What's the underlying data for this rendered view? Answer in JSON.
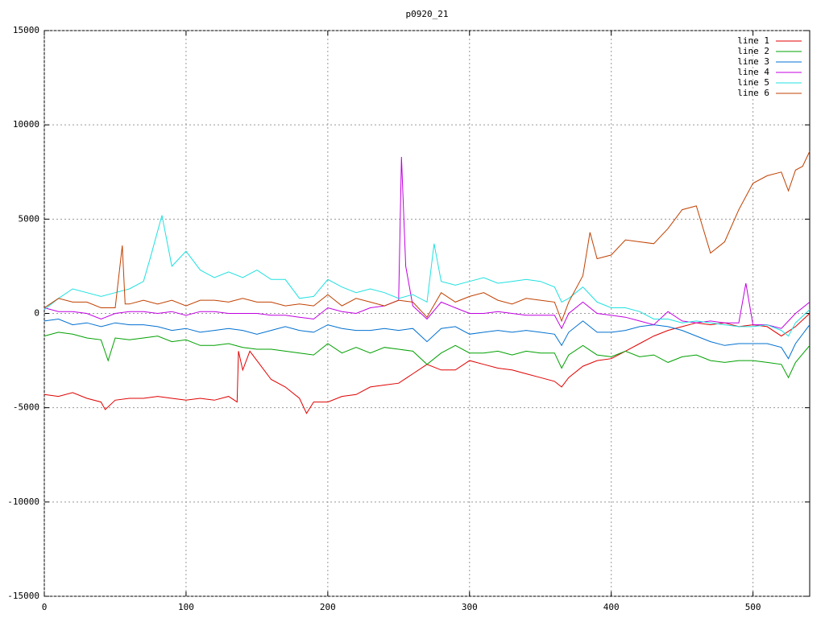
{
  "chart_data": {
    "type": "line",
    "title": "p0920_21",
    "xlim": [
      0,
      540
    ],
    "ylim": [
      -15000,
      15000
    ],
    "xticks": [
      0,
      100,
      200,
      300,
      400,
      500
    ],
    "yticks": [
      -15000,
      -10000,
      -5000,
      0,
      5000,
      10000,
      15000
    ],
    "grid": true,
    "legend": "top-right",
    "series": [
      {
        "name": "line 1",
        "color": "#e00000",
        "x": [
          0,
          10,
          20,
          30,
          40,
          43,
          50,
          60,
          70,
          80,
          90,
          100,
          110,
          120,
          130,
          136,
          137,
          140,
          145,
          150,
          160,
          170,
          180,
          185,
          190,
          200,
          210,
          220,
          230,
          240,
          250,
          260,
          270,
          280,
          290,
          300,
          310,
          320,
          330,
          340,
          350,
          360,
          365,
          370,
          380,
          390,
          400,
          410,
          420,
          430,
          440,
          450,
          460,
          470,
          480,
          490,
          500,
          510,
          520,
          530,
          540
        ],
        "values": [
          -4300,
          -4400,
          -4200,
          -4500,
          -4700,
          -5100,
          -4600,
          -4500,
          -4500,
          -4400,
          -4500,
          -4600,
          -4500,
          -4600,
          -4400,
          -4700,
          -2000,
          -3000,
          -2000,
          -2500,
          -3500,
          -3900,
          -4500,
          -5300,
          -4700,
          -4700,
          -4400,
          -4300,
          -3900,
          -3800,
          -3700,
          -3200,
          -2700,
          -3000,
          -3000,
          -2500,
          -2700,
          -2900,
          -3000,
          -3200,
          -3400,
          -3600,
          -3900,
          -3400,
          -2800,
          -2500,
          -2400,
          -2000,
          -1600,
          -1200,
          -900,
          -700,
          -500,
          -600,
          -500,
          -700,
          -600,
          -700,
          -1200,
          -700,
          0
        ]
      },
      {
        "name": "line 2",
        "color": "#00a000",
        "x": [
          0,
          10,
          20,
          30,
          40,
          45,
          50,
          60,
          70,
          80,
          90,
          100,
          110,
          120,
          130,
          140,
          150,
          160,
          170,
          180,
          190,
          200,
          210,
          220,
          230,
          240,
          250,
          260,
          270,
          280,
          290,
          300,
          310,
          320,
          330,
          340,
          350,
          360,
          365,
          370,
          380,
          390,
          400,
          410,
          420,
          430,
          440,
          450,
          460,
          470,
          480,
          490,
          500,
          510,
          520,
          525,
          530,
          540
        ],
        "values": [
          -1200,
          -1000,
          -1100,
          -1300,
          -1400,
          -2500,
          -1300,
          -1400,
          -1300,
          -1200,
          -1500,
          -1400,
          -1700,
          -1700,
          -1600,
          -1800,
          -1900,
          -1900,
          -2000,
          -2100,
          -2200,
          -1600,
          -2100,
          -1800,
          -2100,
          -1800,
          -1900,
          -2000,
          -2700,
          -2100,
          -1700,
          -2100,
          -2100,
          -2000,
          -2200,
          -2000,
          -2100,
          -2100,
          -2900,
          -2200,
          -1700,
          -2200,
          -2300,
          -2000,
          -2300,
          -2200,
          -2600,
          -2300,
          -2200,
          -2500,
          -2600,
          -2500,
          -2500,
          -2600,
          -2700,
          -3400,
          -2600,
          -1700
        ]
      },
      {
        "name": "line 3",
        "color": "#0070d0",
        "x": [
          0,
          10,
          20,
          30,
          40,
          45,
          50,
          60,
          70,
          80,
          90,
          100,
          110,
          120,
          130,
          140,
          150,
          160,
          170,
          180,
          190,
          200,
          210,
          220,
          230,
          240,
          250,
          260,
          270,
          280,
          290,
          300,
          310,
          320,
          330,
          340,
          350,
          360,
          365,
          370,
          380,
          390,
          400,
          410,
          420,
          430,
          440,
          450,
          460,
          470,
          480,
          490,
          500,
          510,
          520,
          525,
          530,
          540
        ],
        "values": [
          -400,
          -300,
          -600,
          -500,
          -700,
          -600,
          -500,
          -600,
          -600,
          -700,
          -900,
          -800,
          -1000,
          -900,
          -800,
          -900,
          -1100,
          -900,
          -700,
          -900,
          -1000,
          -600,
          -800,
          -900,
          -900,
          -800,
          -900,
          -800,
          -1500,
          -800,
          -700,
          -1100,
          -1000,
          -900,
          -1000,
          -900,
          -1000,
          -1100,
          -1700,
          -1000,
          -400,
          -1000,
          -1000,
          -900,
          -700,
          -600,
          -700,
          -900,
          -1200,
          -1500,
          -1700,
          -1600,
          -1600,
          -1600,
          -1800,
          -2400,
          -1600,
          -600
        ]
      },
      {
        "name": "line 4",
        "color": "#c000e0",
        "x": [
          0,
          10,
          20,
          30,
          40,
          50,
          60,
          70,
          80,
          90,
          100,
          110,
          120,
          130,
          140,
          150,
          160,
          170,
          180,
          190,
          200,
          210,
          220,
          230,
          240,
          250,
          252,
          255,
          260,
          270,
          280,
          290,
          300,
          310,
          320,
          330,
          340,
          350,
          360,
          365,
          370,
          380,
          390,
          400,
          410,
          420,
          430,
          440,
          450,
          460,
          470,
          480,
          490,
          495,
          500,
          510,
          520,
          530,
          540
        ],
        "values": [
          300,
          100,
          100,
          0,
          -300,
          0,
          100,
          100,
          0,
          100,
          -100,
          100,
          100,
          0,
          0,
          0,
          -100,
          -100,
          -200,
          -300,
          300,
          100,
          0,
          300,
          400,
          700,
          8300,
          2500,
          400,
          -300,
          600,
          300,
          0,
          0,
          100,
          0,
          -100,
          -100,
          -100,
          -800,
          0,
          600,
          0,
          -100,
          -200,
          -400,
          -600,
          100,
          -400,
          -500,
          -400,
          -500,
          -500,
          1600,
          -600,
          -600,
          -800,
          0,
          600
        ]
      },
      {
        "name": "line 5",
        "color": "#20e0e0",
        "x": [
          0,
          10,
          20,
          30,
          40,
          50,
          60,
          70,
          75,
          83,
          90,
          100,
          110,
          120,
          130,
          140,
          150,
          160,
          170,
          180,
          190,
          200,
          210,
          220,
          230,
          240,
          250,
          260,
          270,
          275,
          280,
          290,
          300,
          310,
          320,
          330,
          340,
          350,
          360,
          365,
          370,
          380,
          390,
          400,
          410,
          420,
          430,
          440,
          450,
          460,
          470,
          480,
          490,
          500,
          510,
          520,
          525,
          530,
          540
        ],
        "values": [
          200,
          800,
          1300,
          1100,
          900,
          1100,
          1300,
          1700,
          3000,
          5200,
          2500,
          3300,
          2300,
          1900,
          2200,
          1900,
          2300,
          1800,
          1800,
          800,
          900,
          1800,
          1400,
          1100,
          1300,
          1100,
          800,
          1000,
          600,
          3700,
          1700,
          1500,
          1700,
          1900,
          1600,
          1700,
          1800,
          1700,
          1400,
          600,
          800,
          1400,
          600,
          300,
          300,
          100,
          -300,
          -300,
          -500,
          -400,
          -500,
          -600,
          -700,
          -700,
          -600,
          -900,
          -1200,
          -500,
          200
        ]
      },
      {
        "name": "line 6",
        "color": "#c04000",
        "x": [
          0,
          10,
          20,
          30,
          40,
          50,
          55,
          57,
          60,
          70,
          80,
          90,
          100,
          110,
          120,
          130,
          140,
          150,
          160,
          170,
          180,
          190,
          200,
          210,
          220,
          230,
          240,
          250,
          260,
          270,
          280,
          290,
          300,
          310,
          320,
          330,
          340,
          350,
          360,
          365,
          370,
          380,
          385,
          390,
          400,
          410,
          420,
          430,
          440,
          450,
          460,
          470,
          480,
          490,
          500,
          510,
          520,
          525,
          530,
          535,
          540
        ],
        "values": [
          300,
          800,
          600,
          600,
          300,
          300,
          3600,
          500,
          500,
          700,
          500,
          700,
          400,
          700,
          700,
          600,
          800,
          600,
          600,
          400,
          500,
          400,
          1000,
          400,
          800,
          600,
          400,
          700,
          600,
          -200,
          1100,
          600,
          900,
          1100,
          700,
          500,
          800,
          700,
          600,
          -400,
          600,
          2000,
          4300,
          2900,
          3100,
          3900,
          3800,
          3700,
          4500,
          5500,
          5700,
          3200,
          3800,
          5500,
          6900,
          7300,
          7500,
          6500,
          7600,
          7800,
          8600
        ]
      }
    ]
  }
}
